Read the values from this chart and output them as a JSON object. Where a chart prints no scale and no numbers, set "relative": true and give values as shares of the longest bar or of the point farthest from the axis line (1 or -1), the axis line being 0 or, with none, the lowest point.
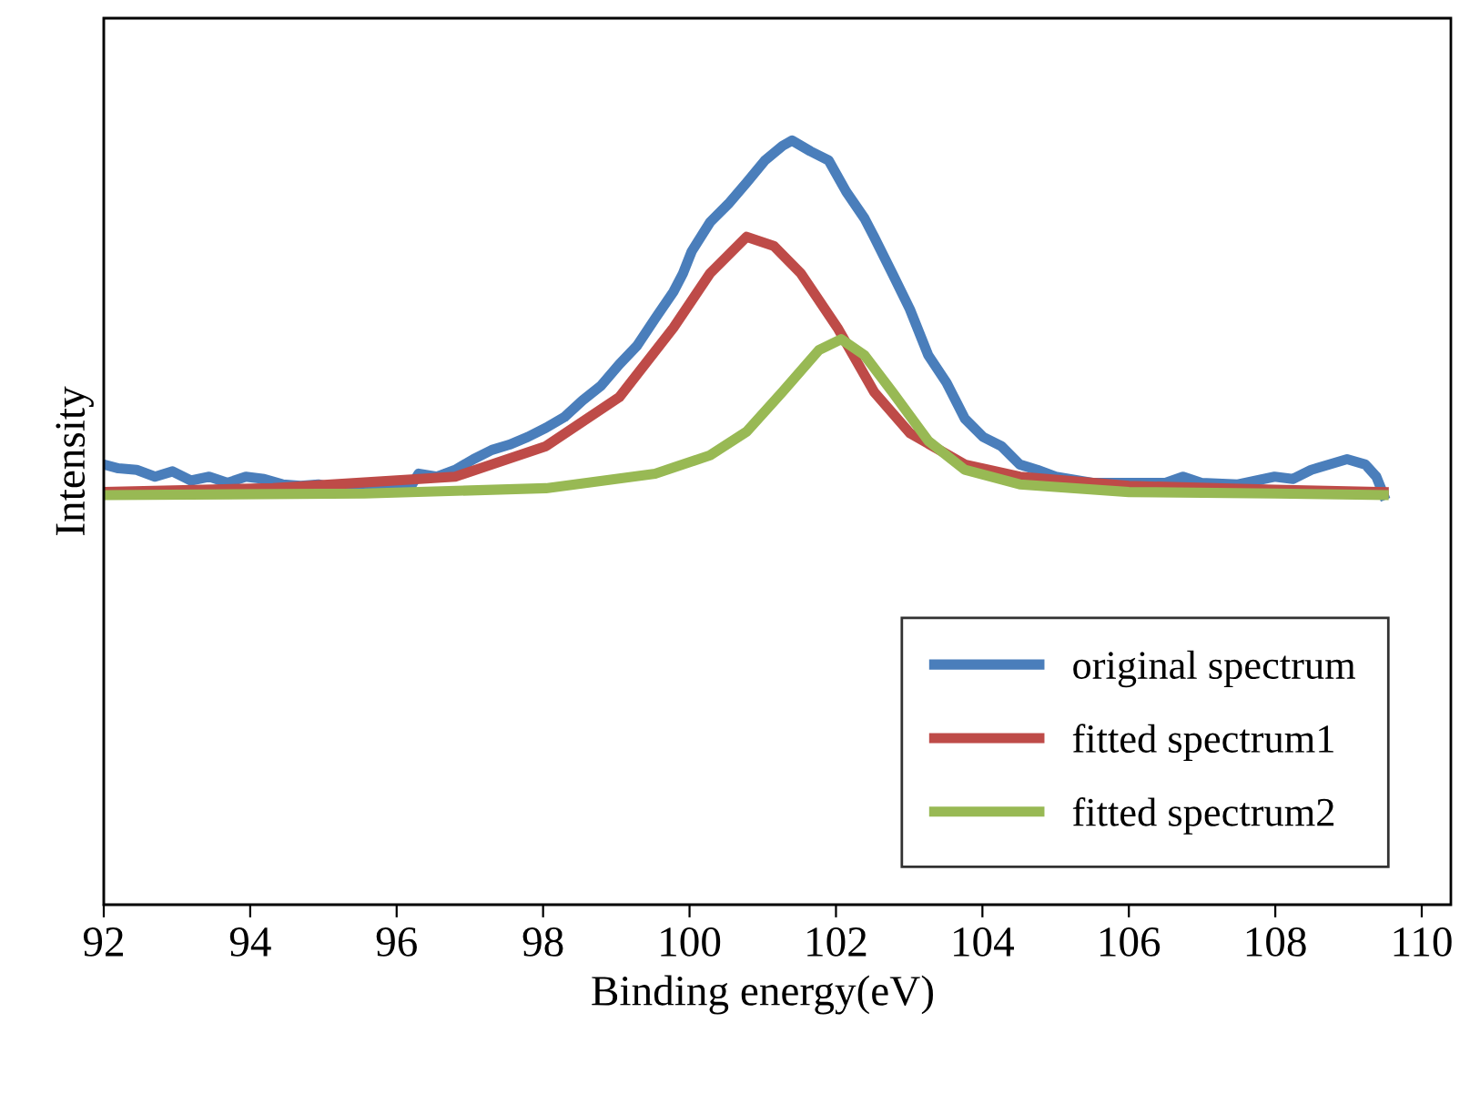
{
  "chart_data": {
    "type": "line",
    "relative": true,
    "xlabel": "Binding energy(eV)",
    "ylabel": "Intensity",
    "xlim": [
      92,
      110
    ],
    "xticks": [
      92,
      94,
      96,
      98,
      100,
      102,
      104,
      106,
      108,
      110
    ],
    "legend": "bottom right",
    "grid": false,
    "marker": "none",
    "line_style": "solid",
    "series": [
      {
        "name": "original spectrum",
        "color": "#4a7ebb",
        "x": [
          92.0,
          92.2,
          92.45,
          92.7,
          92.94,
          93.19,
          93.44,
          93.69,
          93.94,
          94.19,
          94.44,
          94.69,
          94.93,
          95.18,
          95.43,
          95.68,
          95.93,
          96.18,
          96.3,
          96.55,
          96.8,
          97.05,
          97.3,
          97.54,
          97.79,
          98.04,
          98.29,
          98.54,
          98.79,
          99.04,
          99.28,
          99.53,
          99.78,
          99.91,
          100.03,
          100.28,
          100.53,
          100.78,
          101.03,
          101.27,
          101.4,
          101.65,
          101.9,
          102.14,
          102.39,
          102.52,
          102.77,
          103.01,
          103.26,
          103.51,
          103.76,
          104.01,
          104.26,
          104.51,
          104.75,
          105.0,
          105.5,
          106.0,
          106.5,
          106.74,
          106.99,
          107.49,
          107.99,
          108.24,
          108.49,
          108.98,
          109.23,
          109.38,
          109.48
        ],
        "values": [
          0.576,
          0.571,
          0.569,
          0.56,
          0.567,
          0.555,
          0.56,
          0.552,
          0.56,
          0.557,
          0.55,
          0.548,
          0.55,
          0.545,
          0.548,
          0.55,
          0.548,
          0.545,
          0.564,
          0.56,
          0.569,
          0.583,
          0.595,
          0.602,
          0.612,
          0.624,
          0.638,
          0.66,
          0.679,
          0.707,
          0.731,
          0.767,
          0.802,
          0.826,
          0.855,
          0.893,
          0.917,
          0.945,
          0.974,
          0.993,
          1.0,
          0.986,
          0.974,
          0.933,
          0.898,
          0.874,
          0.826,
          0.779,
          0.719,
          0.683,
          0.636,
          0.612,
          0.6,
          0.576,
          0.569,
          0.56,
          0.552,
          0.552,
          0.552,
          0.56,
          0.552,
          0.55,
          0.56,
          0.557,
          0.569,
          0.583,
          0.576,
          0.56,
          0.536
        ]
      },
      {
        "name": "fitted spectrum1",
        "color": "#be4b48",
        "x": [
          92,
          94.31,
          96.8,
          98.04,
          99.04,
          99.78,
          100.28,
          100.78,
          101.15,
          101.52,
          102.02,
          102.52,
          103.01,
          103.76,
          104.51,
          106.0,
          107.99,
          109.48
        ],
        "values": [
          0.54,
          0.545,
          0.56,
          0.6,
          0.664,
          0.755,
          0.826,
          0.874,
          0.862,
          0.826,
          0.755,
          0.671,
          0.617,
          0.576,
          0.56,
          0.548,
          0.543,
          0.54
        ]
      },
      {
        "name": "fitted spectrum2",
        "color": "#98b954",
        "x": [
          92,
          95.56,
          98.04,
          99.53,
          100.28,
          100.78,
          101.27,
          101.77,
          102.07,
          102.39,
          102.77,
          103.26,
          103.76,
          104.51,
          106.0,
          107.99,
          109.48
        ],
        "values": [
          0.536,
          0.538,
          0.545,
          0.564,
          0.588,
          0.619,
          0.671,
          0.726,
          0.74,
          0.719,
          0.671,
          0.607,
          0.569,
          0.55,
          0.54,
          0.538,
          0.536
        ]
      }
    ]
  }
}
